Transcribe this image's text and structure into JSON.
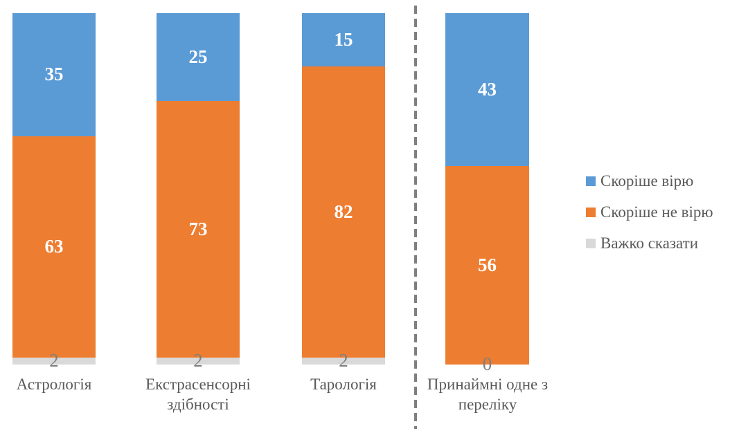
{
  "chart_data": {
    "type": "bar",
    "stacked": true,
    "orientation": "vertical",
    "title": "",
    "xlabel": "",
    "ylabel": "",
    "axes_visible": false,
    "grid": false,
    "background": "#ffffff",
    "legend_position": "right",
    "categories": [
      "Астрологія",
      "Екстрасенсорні здібності",
      "Тарологія",
      "Принаймні одне з переліку"
    ],
    "series": [
      {
        "name": "Скоріше вірю",
        "values": [
          35,
          25,
          15,
          43
        ],
        "color": "#5b9bd5",
        "label_color": "#ffffff",
        "label_bold": true
      },
      {
        "name": "Скоріше не вірю",
        "values": [
          63,
          73,
          82,
          56
        ],
        "color": "#ed7d31",
        "label_color": "#ffffff",
        "label_bold": true
      },
      {
        "name": "Важко сказати",
        "values": [
          2,
          2,
          2,
          0
        ],
        "color": "#d9d9d9",
        "label_color": "#7f7f7f",
        "label_bold": false
      }
    ],
    "separator": {
      "after_category_index": 2,
      "style": "dashed",
      "color": "#7f7f7f"
    }
  }
}
